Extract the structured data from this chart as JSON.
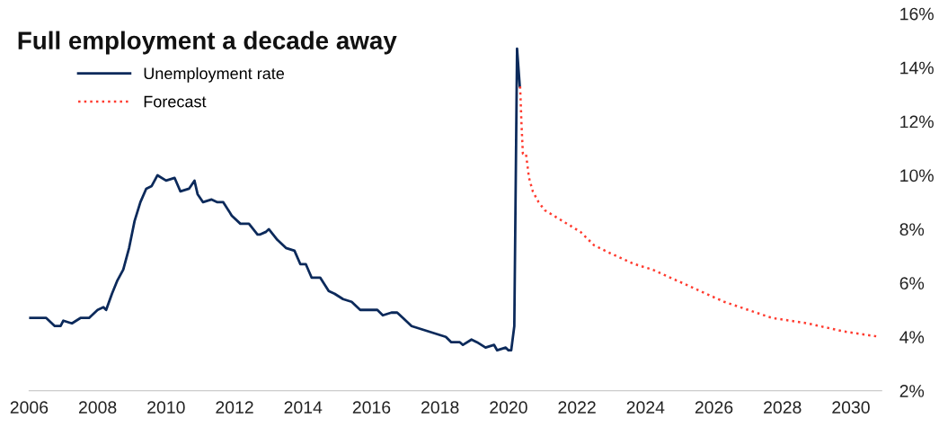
{
  "chart_data": {
    "type": "line",
    "title": "Full employment a decade away",
    "xlim": [
      2006,
      2030.9
    ],
    "xticks": [
      2006,
      2008,
      2010,
      2012,
      2014,
      2016,
      2018,
      2020,
      2022,
      2024,
      2026,
      2028,
      2030
    ],
    "ylim": [
      2,
      16
    ],
    "yticks": [
      {
        "value": 2,
        "label": "2%"
      },
      {
        "value": 4,
        "label": "4%"
      },
      {
        "value": 6,
        "label": "6%"
      },
      {
        "value": 8,
        "label": "8%"
      },
      {
        "value": 10,
        "label": "10%"
      },
      {
        "value": 12,
        "label": "12%"
      },
      {
        "value": 14,
        "label": "14%"
      },
      {
        "value": 16,
        "label": "16%"
      }
    ],
    "grid": false,
    "legend": "top left",
    "series": [
      {
        "name": "Unemployment rate",
        "color": "#0c2a5b",
        "line_style": "solid",
        "x": [
          2006.0,
          2006.25,
          2006.5,
          2006.75,
          2006.92,
          2007.0,
          2007.25,
          2007.5,
          2007.75,
          2008.0,
          2008.17,
          2008.25,
          2008.42,
          2008.58,
          2008.75,
          2008.92,
          2009.08,
          2009.25,
          2009.42,
          2009.58,
          2009.75,
          2010.0,
          2010.25,
          2010.42,
          2010.67,
          2010.83,
          2010.92,
          2011.08,
          2011.33,
          2011.5,
          2011.67,
          2011.92,
          2012.17,
          2012.42,
          2012.67,
          2012.75,
          2012.92,
          2013.0,
          2013.25,
          2013.5,
          2013.75,
          2013.92,
          2014.08,
          2014.25,
          2014.5,
          2014.75,
          2014.92,
          2015.17,
          2015.42,
          2015.67,
          2015.92,
          2016.17,
          2016.33,
          2016.58,
          2016.75,
          2016.92,
          2017.17,
          2017.42,
          2017.67,
          2017.92,
          2018.17,
          2018.33,
          2018.58,
          2018.67,
          2018.92,
          2019.08,
          2019.33,
          2019.58,
          2019.67,
          2019.92,
          2020.0,
          2020.08,
          2020.17,
          2020.25,
          2020.33
        ],
        "values": [
          4.7,
          4.7,
          4.7,
          4.4,
          4.4,
          4.6,
          4.5,
          4.7,
          4.7,
          5.0,
          5.1,
          5.0,
          5.6,
          6.1,
          6.5,
          7.3,
          8.3,
          9.0,
          9.5,
          9.6,
          10.0,
          9.8,
          9.9,
          9.4,
          9.5,
          9.8,
          9.3,
          9.0,
          9.1,
          9.0,
          9.0,
          8.5,
          8.2,
          8.2,
          7.8,
          7.8,
          7.9,
          8.0,
          7.6,
          7.3,
          7.2,
          6.7,
          6.7,
          6.2,
          6.2,
          5.7,
          5.6,
          5.4,
          5.3,
          5.0,
          5.0,
          5.0,
          4.8,
          4.9,
          4.9,
          4.7,
          4.4,
          4.3,
          4.2,
          4.1,
          4.0,
          3.8,
          3.8,
          3.7,
          3.9,
          3.8,
          3.6,
          3.7,
          3.5,
          3.6,
          3.5,
          3.5,
          4.4,
          14.7,
          13.3
        ]
      },
      {
        "name": "Forecast",
        "color": "#ff3b2f",
        "line_style": "dotted",
        "x": [
          2020.34,
          2020.38,
          2020.42,
          2020.51,
          2020.53,
          2020.6,
          2020.71,
          2020.88,
          2021.06,
          2021.58,
          2022.1,
          2022.5,
          2022.98,
          2023.68,
          2024.2,
          2024.9,
          2025.6,
          2026.3,
          2027.0,
          2027.7,
          2028.74,
          2029.79,
          2030.84
        ],
        "values": [
          13.3,
          11.9,
          10.8,
          10.8,
          10.6,
          9.9,
          9.4,
          9.0,
          8.7,
          8.3,
          7.9,
          7.4,
          7.1,
          6.7,
          6.5,
          6.1,
          5.7,
          5.3,
          5.0,
          4.7,
          4.5,
          4.2,
          4.0
        ]
      }
    ]
  }
}
